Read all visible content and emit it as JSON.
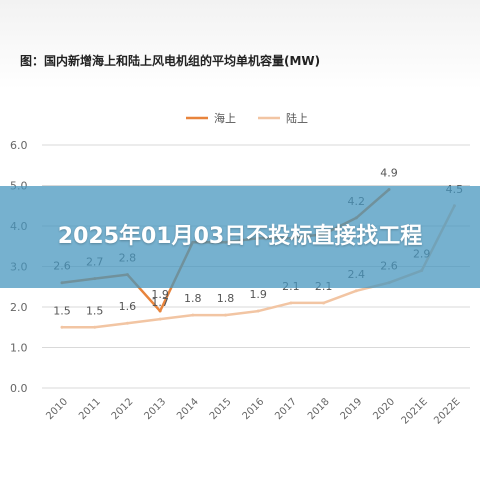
{
  "headline": "2025年01月03日不投标直接找工程",
  "chart_data": {
    "type": "line",
    "title": "图：国内新增海上和陆上风电机组的平均单机容量(MW)",
    "xlabel": "",
    "ylabel": "",
    "categories": [
      "2010",
      "2011",
      "2012",
      "2013",
      "2014",
      "2015",
      "2016",
      "2017",
      "2018",
      "2019",
      "2020",
      "2021E",
      "2022E"
    ],
    "ylim": [
      0,
      6
    ],
    "yticks": [
      "0.0",
      "1.0",
      "2.0",
      "3.0",
      "4.0",
      "5.0",
      "6.0"
    ],
    "grid": "horizontal",
    "legend": "top-center",
    "series": [
      {
        "name": "海上",
        "color": "#e8843c",
        "values": [
          2.6,
          2.7,
          2.8,
          1.9,
          3.6,
          3.6,
          3.7,
          3.7,
          3.8,
          4.2,
          4.9,
          null,
          null
        ],
        "labels": [
          "2.6",
          "2.7",
          "2.8",
          "1.9",
          "",
          "",
          "",
          "",
          "",
          "4.2",
          "4.9",
          "",
          ""
        ]
      },
      {
        "name": "陆上",
        "color": "#f2c5a3",
        "values": [
          1.5,
          1.5,
          1.6,
          1.7,
          1.8,
          1.8,
          1.9,
          2.1,
          2.1,
          2.4,
          2.6,
          2.9,
          4.5
        ],
        "labels": [
          "1.5",
          "1.5",
          "1.6",
          "1.7",
          "1.8",
          "1.8",
          "1.9",
          "2.1",
          "2.1",
          "2.4",
          "2.6",
          "2.9",
          "4.5"
        ]
      }
    ]
  }
}
